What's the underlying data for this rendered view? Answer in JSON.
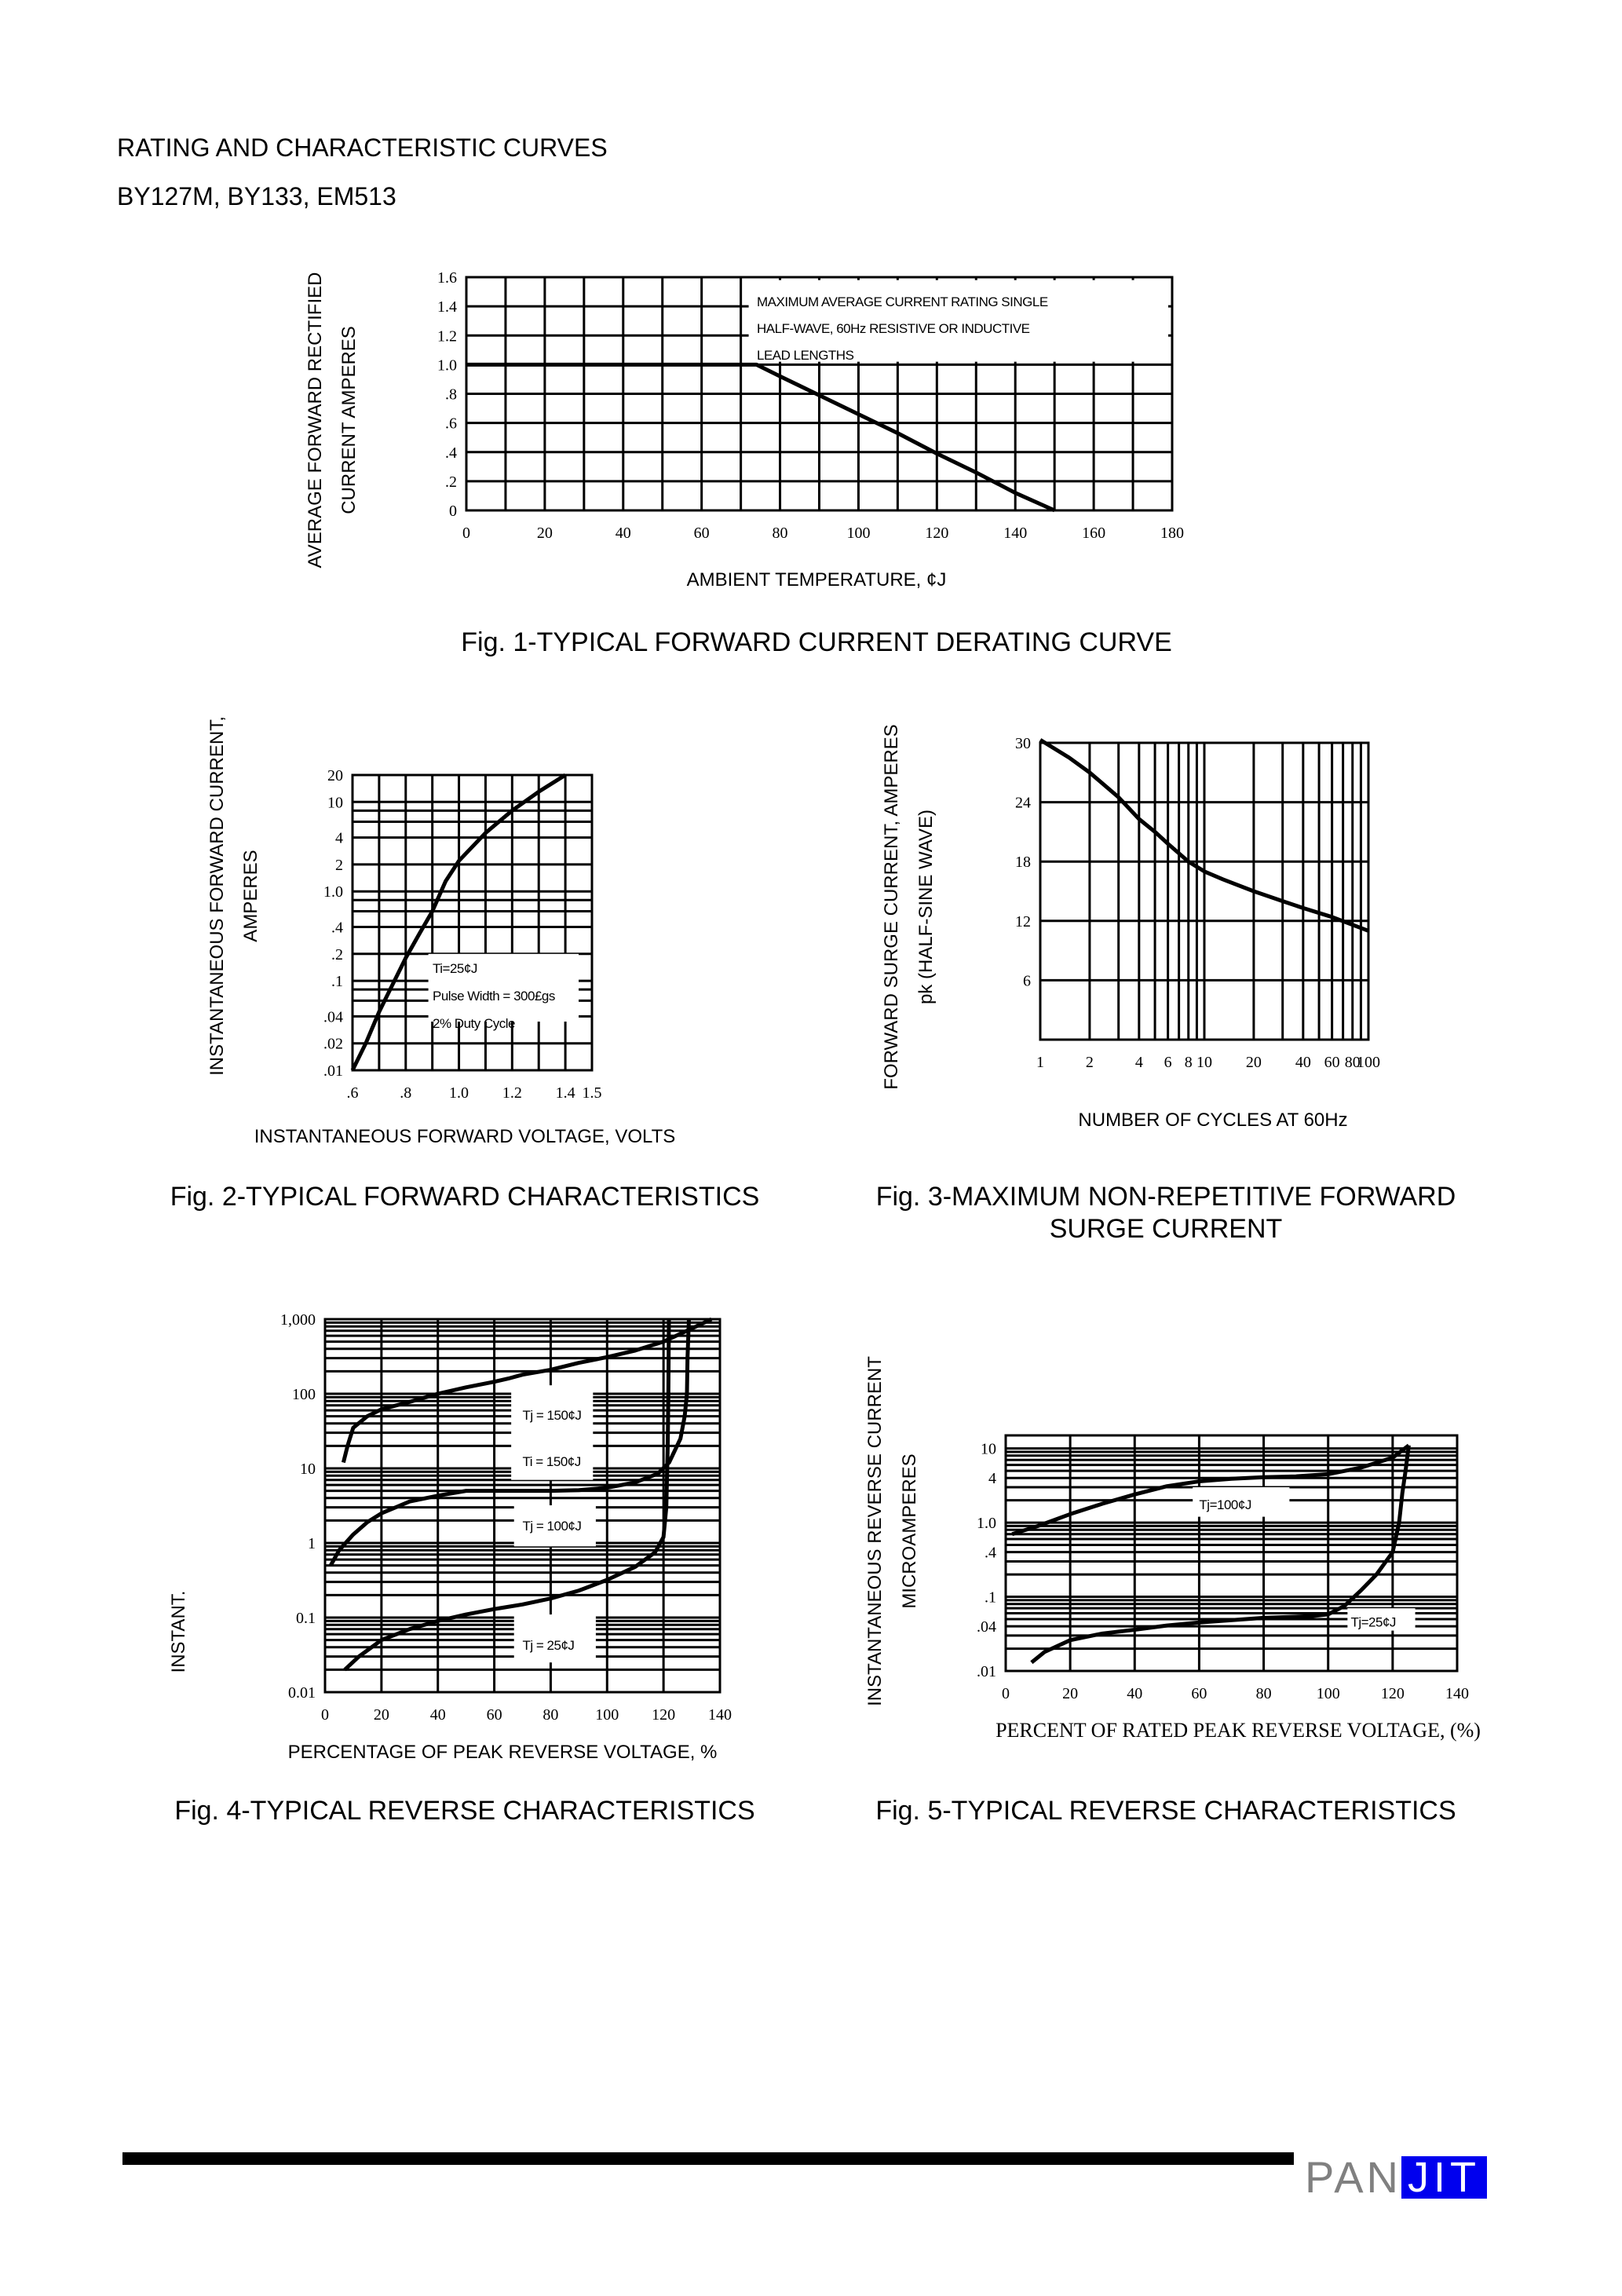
{
  "page": {
    "heading": "RATING AND CHARACTERISTIC CURVES",
    "part_numbers": "BY127M, BY133, EM513"
  },
  "footer": {
    "logo_text_left": "PAN",
    "logo_text_right": "JIT",
    "logo_colors": {
      "left": "#808080",
      "right_bg": "#0000ee"
    }
  },
  "chart_data": [
    {
      "type": "line",
      "title": "Fig. 1-TYPICAL FORWARD CURRENT DERATING CURVE",
      "xlabel": "AMBIENT TEMPERATURE, ¢J",
      "ylabel": [
        "AVERAGE FORWARD RECTIFIED",
        "CURRENT AMPERES"
      ],
      "xscale": "linear",
      "yscale": "linear",
      "xlim": [
        0,
        180
      ],
      "ylim": [
        0,
        1.6
      ],
      "grid": true,
      "xticks": [
        {
          "v": 0,
          "label": "0"
        },
        {
          "v": 20,
          "label": "20"
        },
        {
          "v": 40,
          "label": "40"
        },
        {
          "v": 60,
          "label": "60"
        },
        {
          "v": 80,
          "label": "80"
        },
        {
          "v": 100,
          "label": "100"
        },
        {
          "v": 120,
          "label": "120"
        },
        {
          "v": 140,
          "label": "140"
        },
        {
          "v": 160,
          "label": "160"
        },
        {
          "v": 180,
          "label": "180"
        }
      ],
      "yticks": [
        {
          "v": 0,
          "label": "0"
        },
        {
          "v": 0.2,
          "label": ".2"
        },
        {
          "v": 0.4,
          "label": ".4"
        },
        {
          "v": 0.6,
          "label": ".6"
        },
        {
          "v": 0.8,
          "label": ".8"
        },
        {
          "v": 1.0,
          "label": "1.0"
        },
        {
          "v": 1.2,
          "label": "1.2"
        },
        {
          "v": 1.4,
          "label": "1.4"
        },
        {
          "v": 1.6,
          "label": "1.6"
        }
      ],
      "annotation": [
        "MAXIMUM AVERAGE CURRENT RATING SINGLE",
        "HALF-WAVE, 60Hz RESISTIVE OR INDUCTIVE",
        "LEAD LENGTHS"
      ],
      "series": [
        {
          "points": [
            [
              0,
              1.0
            ],
            [
              74,
              1.0
            ],
            [
              80,
              0.92
            ],
            [
              90,
              0.79
            ],
            [
              100,
              0.66
            ],
            [
              110,
              0.53
            ],
            [
              120,
              0.39
            ],
            [
              130,
              0.26
            ],
            [
              140,
              0.12
            ],
            [
              150,
              0.0
            ]
          ]
        }
      ]
    },
    {
      "type": "line",
      "title": "Fig. 2-TYPICAL FORWARD CHARACTERISTICS",
      "xlabel": "INSTANTANEOUS FORWARD VOLTAGE, VOLTS",
      "ylabel": [
        "INSTANTANEOUS FORWARD CURRENT,",
        "AMPERES"
      ],
      "xscale": "linear",
      "yscale": "log",
      "xlim": [
        0.6,
        1.5
      ],
      "ylim": [
        0.01,
        20
      ],
      "grid": true,
      "xticks": [
        {
          "v": 0.6,
          "label": ".6"
        },
        {
          "v": 0.8,
          "label": ".8"
        },
        {
          "v": 1.0,
          "label": "1.0"
        },
        {
          "v": 1.2,
          "label": "1.2"
        },
        {
          "v": 1.4,
          "label": "1.4"
        },
        {
          "v": 1.5,
          "label": "1.5"
        }
      ],
      "yticks": [
        {
          "v": 20,
          "label": "20"
        },
        {
          "v": 10,
          "label": "10"
        },
        {
          "v": 4,
          "label": "4"
        },
        {
          "v": 2,
          "label": "2"
        },
        {
          "v": 1,
          "label": "1.0"
        },
        {
          "v": 0.4,
          "label": ".4"
        },
        {
          "v": 0.2,
          "label": ".2"
        },
        {
          "v": 0.1,
          "label": ".1"
        },
        {
          "v": 0.04,
          "label": ".04"
        },
        {
          "v": 0.02,
          "label": ".02"
        },
        {
          "v": 0.01,
          "label": ".01"
        }
      ],
      "annotation": [
        "Ti=25¢J",
        "Pulse Width = 300£gs",
        "2% Duty Cycle"
      ],
      "series": [
        {
          "points": [
            [
              0.6,
              0.01
            ],
            [
              0.65,
              0.02
            ],
            [
              0.7,
              0.045
            ],
            [
              0.75,
              0.09
            ],
            [
              0.8,
              0.18
            ],
            [
              0.85,
              0.33
            ],
            [
              0.9,
              0.6
            ],
            [
              0.95,
              1.3
            ],
            [
              1.0,
              2.2
            ],
            [
              1.1,
              4.5
            ],
            [
              1.2,
              8
            ],
            [
              1.3,
              13
            ],
            [
              1.4,
              20
            ]
          ]
        }
      ]
    },
    {
      "type": "line",
      "title": [
        "Fig. 3-MAXIMUM NON-REPETITIVE FORWARD",
        "SURGE CURRENT"
      ],
      "xlabel": "NUMBER OF CYCLES AT 60Hz",
      "ylabel": [
        "FORWARD SURGE CURRENT, AMPERES",
        "pk (HALF-SINE WAVE)"
      ],
      "xscale": "log",
      "yscale": "linear",
      "xlim": [
        1,
        100
      ],
      "ylim": [
        0,
        30
      ],
      "grid": true,
      "xticks": [
        {
          "v": 1,
          "label": "1"
        },
        {
          "v": 2,
          "label": "2"
        },
        {
          "v": 4,
          "label": "4"
        },
        {
          "v": 6,
          "label": "6"
        },
        {
          "v": 8,
          "label": "8"
        },
        {
          "v": 10,
          "label": "10"
        },
        {
          "v": 20,
          "label": "20"
        },
        {
          "v": 40,
          "label": "40"
        },
        {
          "v": 60,
          "label": "60"
        },
        {
          "v": 80,
          "label": "80"
        },
        {
          "v": 100,
          "label": "100"
        }
      ],
      "yticks": [
        {
          "v": 6,
          "label": "6"
        },
        {
          "v": 12,
          "label": "12"
        },
        {
          "v": 18,
          "label": "18"
        },
        {
          "v": 24,
          "label": "24"
        },
        {
          "v": 30,
          "label": "30"
        }
      ],
      "series": [
        {
          "points": [
            [
              1,
              30.3
            ],
            [
              1.5,
              28.5
            ],
            [
              2,
              27
            ],
            [
              3,
              24.5
            ],
            [
              4,
              22.3
            ],
            [
              5,
              21
            ],
            [
              6,
              19.8
            ],
            [
              8,
              18
            ],
            [
              10,
              17
            ],
            [
              13,
              16.2
            ],
            [
              20,
              15
            ],
            [
              30,
              14
            ],
            [
              40,
              13.3
            ],
            [
              60,
              12.4
            ],
            [
              100,
              11
            ]
          ]
        }
      ]
    },
    {
      "type": "line",
      "title": "Fig. 4-TYPICAL REVERSE CHARACTERISTICS",
      "xlabel": "PERCENTAGE OF PEAK REVERSE VOLTAGE, %",
      "ylabel": [
        "INSTANT."
      ],
      "xscale": "linear",
      "yscale": "log",
      "xlim": [
        0,
        140
      ],
      "ylim": [
        0.01,
        1000
      ],
      "grid": true,
      "xticks": [
        {
          "v": 0,
          "label": "0"
        },
        {
          "v": 20,
          "label": "20"
        },
        {
          "v": 40,
          "label": "40"
        },
        {
          "v": 60,
          "label": "60"
        },
        {
          "v": 80,
          "label": "80"
        },
        {
          "v": 100,
          "label": "100"
        },
        {
          "v": 120,
          "label": "120"
        },
        {
          "v": 140,
          "label": "140"
        }
      ],
      "yticks": [
        {
          "v": 1000,
          "label": "1,000"
        },
        {
          "v": 100,
          "label": "100"
        },
        {
          "v": 10,
          "label": "10"
        },
        {
          "v": 1,
          "label": "1"
        },
        {
          "v": 0.1,
          "label": "0.1"
        },
        {
          "v": 0.01,
          "label": "0.01"
        }
      ],
      "series": [
        {
          "name": "Tj = 150¢J",
          "points": [
            [
              6.5,
              12
            ],
            [
              8,
              20
            ],
            [
              10,
              35
            ],
            [
              15,
              50
            ],
            [
              20,
              62
            ],
            [
              30,
              78
            ],
            [
              40,
              100
            ],
            [
              50,
              122
            ],
            [
              60,
              145
            ],
            [
              65,
              160
            ],
            [
              70,
              180
            ],
            [
              80,
              210
            ],
            [
              90,
              260
            ],
            [
              100,
              310
            ],
            [
              110,
              380
            ],
            [
              120,
              500
            ],
            [
              130,
              750
            ],
            [
              137,
              1000
            ]
          ]
        },
        {
          "name": "Ti = 150¢J",
          "points": [
            [
              2,
              0.5
            ],
            [
              5,
              0.8
            ],
            [
              10,
              1.3
            ],
            [
              15,
              1.9
            ],
            [
              20,
              2.5
            ],
            [
              30,
              3.6
            ],
            [
              40,
              4.3
            ],
            [
              50,
              5
            ],
            [
              60,
              5
            ],
            [
              80,
              5
            ],
            [
              90,
              5.1
            ],
            [
              100,
              5.5
            ],
            [
              110,
              6.5
            ],
            [
              118,
              8.5
            ],
            [
              122,
              12
            ],
            [
              126,
              25
            ],
            [
              127.5,
              50
            ],
            [
              128.3,
              100
            ],
            [
              128.5,
              300
            ],
            [
              129,
              1000
            ]
          ]
        },
        {
          "name": "Tj = 100¢J",
          "points": []
        },
        {
          "name": "Tj = 25¢J",
          "points": [
            [
              7,
              0.02
            ],
            [
              12,
              0.03
            ],
            [
              20,
              0.05
            ],
            [
              30,
              0.07
            ],
            [
              40,
              0.09
            ],
            [
              50,
              0.11
            ],
            [
              60,
              0.13
            ],
            [
              70,
              0.15
            ],
            [
              80,
              0.18
            ],
            [
              90,
              0.23
            ],
            [
              100,
              0.32
            ],
            [
              110,
              0.48
            ],
            [
              117,
              0.75
            ],
            [
              120,
              1.2
            ],
            [
              121,
              3
            ],
            [
              121.5,
              20
            ],
            [
              121.7,
              100
            ],
            [
              121.9,
              1000
            ]
          ]
        }
      ]
    },
    {
      "type": "line",
      "title": "Fig. 5-TYPICAL REVERSE CHARACTERISTICS",
      "xlabel": "PERCENT OF RATED PEAK REVERSE VOLTAGE, (%)",
      "ylabel": [
        "INSTANTANEOUS REVERSE CURRENT",
        "MICROAMPERES"
      ],
      "xscale": "linear",
      "yscale": "log",
      "xlim": [
        0,
        140
      ],
      "ylim": [
        0.01,
        15
      ],
      "grid": true,
      "xticks": [
        {
          "v": 0,
          "label": "0"
        },
        {
          "v": 20,
          "label": "20"
        },
        {
          "v": 40,
          "label": "40"
        },
        {
          "v": 60,
          "label": "60"
        },
        {
          "v": 80,
          "label": "80"
        },
        {
          "v": 100,
          "label": "100"
        },
        {
          "v": 120,
          "label": "120"
        },
        {
          "v": 140,
          "label": "140"
        }
      ],
      "yticks": [
        {
          "v": 10,
          "label": "10"
        },
        {
          "v": 4,
          "label": "4"
        },
        {
          "v": 1,
          "label": "1.0"
        },
        {
          "v": 0.4,
          "label": ".4"
        },
        {
          "v": 0.1,
          "label": ".1"
        },
        {
          "v": 0.04,
          "label": ".04"
        },
        {
          "v": 0.01,
          "label": ".01"
        }
      ],
      "series": [
        {
          "name": "Tj=100¢J",
          "points": [
            [
              2,
              0.7
            ],
            [
              10,
              0.9
            ],
            [
              20,
              1.3
            ],
            [
              30,
              1.8
            ],
            [
              40,
              2.4
            ],
            [
              50,
              3.1
            ],
            [
              60,
              3.6
            ],
            [
              70,
              3.9
            ],
            [
              80,
              4.1
            ],
            [
              90,
              4.2
            ],
            [
              100,
              4.5
            ],
            [
              110,
              5.5
            ],
            [
              120,
              7.5
            ],
            [
              125,
              11
            ]
          ]
        },
        {
          "name": "Tj=25¢J",
          "points": [
            [
              8,
              0.013
            ],
            [
              12,
              0.018
            ],
            [
              20,
              0.026
            ],
            [
              30,
              0.032
            ],
            [
              40,
              0.036
            ],
            [
              50,
              0.041
            ],
            [
              60,
              0.045
            ],
            [
              80,
              0.052
            ],
            [
              95,
              0.055
            ],
            [
              100,
              0.058
            ],
            [
              105,
              0.075
            ],
            [
              110,
              0.12
            ],
            [
              115,
              0.2
            ],
            [
              120,
              0.4
            ],
            [
              122,
              1.0
            ],
            [
              123,
              2.5
            ],
            [
              124,
              5
            ],
            [
              125,
              11
            ]
          ]
        }
      ]
    }
  ]
}
